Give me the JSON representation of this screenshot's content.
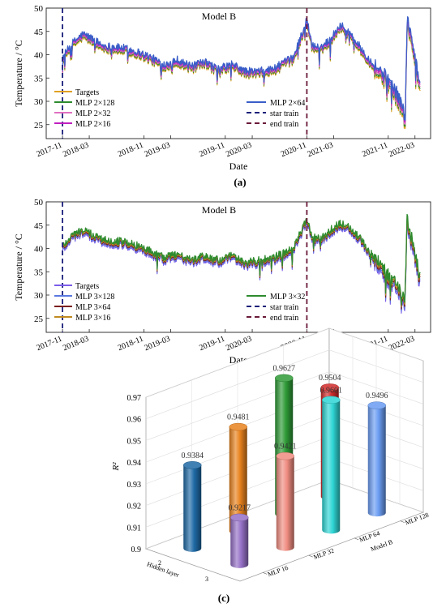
{
  "chart_data": [
    {
      "type": "line",
      "title": "Model B",
      "panel_label": "(a)",
      "xlabel": "Date",
      "ylabel": "Temperature / °C",
      "ylim": [
        22,
        50
      ],
      "yticks": [
        25,
        30,
        35,
        40,
        45,
        50
      ],
      "xticks": [
        "2017-11",
        "2018-03",
        "2018-11",
        "2019-03",
        "2019-11",
        "2020-03",
        "2020-11",
        "2021-03",
        "2021-11",
        "2022-03"
      ],
      "xdate_range": [
        "2017-08-20",
        "2022-05-10"
      ],
      "vlines": [
        {
          "name": "star train",
          "date": "2017-11-01",
          "color": "#1a1f7a"
        },
        {
          "name": "end train",
          "date": "2020-11-01",
          "color": "#6a1a3a"
        }
      ],
      "legend_left": [
        "Targets",
        "MLP 2×128",
        "MLP 2×32",
        "MLP 2×16"
      ],
      "legend_right": [
        "MLP 2×64",
        "star train",
        "end train"
      ],
      "series": [
        {
          "name": "Targets",
          "color": "#e0a020"
        },
        {
          "name": "MLP 2×128",
          "color": "#2e8b2e"
        },
        {
          "name": "MLP 2×32",
          "color": "#e070c0"
        },
        {
          "name": "MLP 2×16",
          "color": "#c020c0"
        },
        {
          "name": "MLP 2×64",
          "color": "#3a5ec8"
        }
      ],
      "profile": [
        [
          "2017-11-01",
          39
        ],
        [
          "2017-12-15",
          42
        ],
        [
          "2018-02-01",
          44
        ],
        [
          "2018-03-15",
          43
        ],
        [
          "2018-05-01",
          41.5
        ],
        [
          "2018-08-01",
          41
        ],
        [
          "2018-10-15",
          40
        ],
        [
          "2018-12-01",
          39
        ],
        [
          "2019-02-01",
          37.5
        ],
        [
          "2019-04-01",
          38.5
        ],
        [
          "2019-06-01",
          37
        ],
        [
          "2019-08-01",
          38
        ],
        [
          "2019-10-01",
          36.5
        ],
        [
          "2019-12-01",
          37.5
        ],
        [
          "2020-02-01",
          36
        ],
        [
          "2020-04-01",
          36
        ],
        [
          "2020-06-01",
          36.5
        ],
        [
          "2020-09-01",
          39
        ],
        [
          "2020-11-01",
          47
        ],
        [
          "2020-11-25",
          41.5
        ],
        [
          "2021-01-01",
          41
        ],
        [
          "2021-02-15",
          43
        ],
        [
          "2021-04-01",
          46
        ],
        [
          "2021-05-15",
          44
        ],
        [
          "2021-07-01",
          41
        ],
        [
          "2021-09-01",
          37
        ],
        [
          "2021-11-01",
          34
        ],
        [
          "2021-12-20",
          30
        ],
        [
          "2022-01-15",
          26
        ],
        [
          "2022-01-25",
          47
        ],
        [
          "2022-02-20",
          41
        ],
        [
          "2022-03-10",
          37
        ],
        [
          "2022-03-20",
          33
        ]
      ]
    },
    {
      "type": "line",
      "title": "Model B",
      "panel_label": "(b)",
      "xlabel": "Date",
      "ylabel": "Temperature / °C",
      "ylim": [
        22,
        50
      ],
      "yticks": [
        25,
        30,
        35,
        40,
        45,
        50
      ],
      "xticks": [
        "2017-11",
        "2018-03",
        "2018-11",
        "2019-03",
        "2019-11",
        "2020-03",
        "2020-11",
        "2021-03",
        "2021-11",
        "2022-03"
      ],
      "xdate_range": [
        "2017-08-20",
        "2022-05-10"
      ],
      "vlines": [
        {
          "name": "star train",
          "date": "2017-11-01",
          "color": "#1a1f7a"
        },
        {
          "name": "end train",
          "date": "2020-11-01",
          "color": "#6a1a3a"
        }
      ],
      "legend_left": [
        "Targets",
        "MLP 3×128",
        "MLP 3×64",
        "MLP 3×16"
      ],
      "legend_right": [
        "MLP 3×32",
        "star train",
        "end train"
      ],
      "series": [
        {
          "name": "Targets",
          "color": "#7a5ce8"
        },
        {
          "name": "MLP 3×128",
          "color": "#5a78e0"
        },
        {
          "name": "MLP 3×64",
          "color": "#7a1e1e"
        },
        {
          "name": "MLP 3×16",
          "color": "#c08a20"
        },
        {
          "name": "MLP 3×32",
          "color": "#2e8b2e"
        }
      ],
      "profile": [
        [
          "2017-11-01",
          40
        ],
        [
          "2017-12-15",
          42.5
        ],
        [
          "2018-02-01",
          43.5
        ],
        [
          "2018-03-15",
          42.5
        ],
        [
          "2018-05-01",
          41.5
        ],
        [
          "2018-08-01",
          41
        ],
        [
          "2018-10-15",
          40
        ],
        [
          "2018-12-01",
          39
        ],
        [
          "2019-02-01",
          37.5
        ],
        [
          "2019-04-01",
          38.5
        ],
        [
          "2019-06-01",
          37
        ],
        [
          "2019-08-01",
          38
        ],
        [
          "2019-10-01",
          37
        ],
        [
          "2019-12-01",
          38
        ],
        [
          "2020-02-01",
          36.5
        ],
        [
          "2020-04-01",
          37
        ],
        [
          "2020-06-01",
          37.5
        ],
        [
          "2020-09-01",
          39.5
        ],
        [
          "2020-11-01",
          46
        ],
        [
          "2020-11-25",
          42
        ],
        [
          "2021-01-01",
          41.5
        ],
        [
          "2021-02-15",
          43.5
        ],
        [
          "2021-04-01",
          45
        ],
        [
          "2021-05-15",
          44
        ],
        [
          "2021-07-01",
          41.5
        ],
        [
          "2021-09-01",
          37.5
        ],
        [
          "2021-11-01",
          33.5
        ],
        [
          "2021-12-20",
          31
        ],
        [
          "2022-01-15",
          28
        ],
        [
          "2022-01-25",
          46
        ],
        [
          "2022-02-20",
          40
        ],
        [
          "2022-03-10",
          36
        ],
        [
          "2022-03-20",
          33
        ]
      ]
    },
    {
      "type": "bar",
      "subtype": "3d-cylinder",
      "panel_label": "(c)",
      "zlabel": "R²",
      "xlabel": "Hidden layer",
      "ylabel": "Model B",
      "zlim": [
        0.9,
        0.97
      ],
      "zticks": [
        0.9,
        0.91,
        0.92,
        0.93,
        0.94,
        0.95,
        0.96,
        0.97
      ],
      "zticks_text": [
        "0.9",
        "0.91",
        "0.92",
        "0.93",
        "0.94",
        "0.95",
        "0.96",
        "0.97"
      ],
      "hidden_layers": [
        "2",
        "3"
      ],
      "models": [
        "MLP 16",
        "MLP 32",
        "MLP 64",
        "MLP 128"
      ],
      "bars": [
        {
          "layer": "2",
          "model": "MLP 16",
          "value": 0.9384,
          "label": "0.9384",
          "color": "#1f6aa6"
        },
        {
          "layer": "2",
          "model": "MLP 32",
          "value": 0.9481,
          "label": "0.9481",
          "color": "#e8821e"
        },
        {
          "layer": "2",
          "model": "MLP 64",
          "value": 0.9627,
          "label": "0.9627",
          "color": "#2e9a36"
        },
        {
          "layer": "2",
          "model": "MLP 128",
          "value": 0.9504,
          "label": "0.9504",
          "color": "#d22a2a"
        },
        {
          "layer": "3",
          "model": "MLP 16",
          "value": 0.9217,
          "label": "0.9217",
          "color": "#9570c6"
        },
        {
          "layer": "3",
          "model": "MLP 32",
          "value": 0.9421,
          "label": "0.9421",
          "color": "#f08c80"
        },
        {
          "layer": "3",
          "model": "MLP 64",
          "value": 0.9601,
          "label": "0.9601",
          "color": "#2fd5d5"
        },
        {
          "layer": "3",
          "model": "MLP 128",
          "value": 0.9496,
          "label": "0.9496",
          "color": "#6a9cf2"
        }
      ]
    }
  ]
}
